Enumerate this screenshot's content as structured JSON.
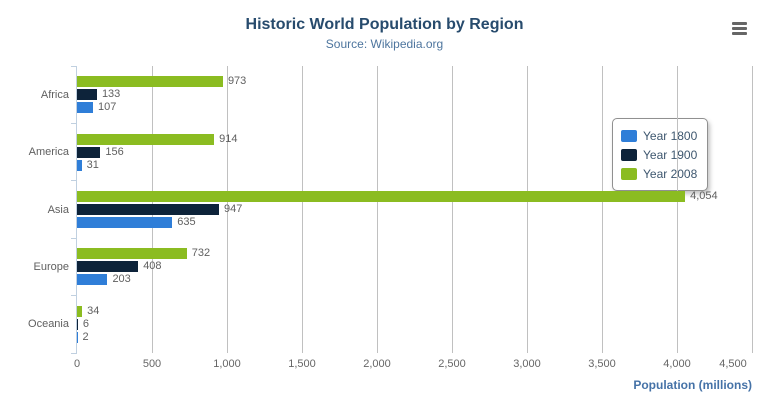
{
  "header": {
    "export_menu_icon": "hamburger-icon"
  },
  "chart_data": {
    "type": "bar",
    "orientation": "horizontal",
    "title": "Historic World Population by Region",
    "subtitle": "Source: Wikipedia.org",
    "categories": [
      "Africa",
      "America",
      "Asia",
      "Europe",
      "Oceania"
    ],
    "series": [
      {
        "name": "Year 1800",
        "color": "#2f7ed8",
        "values": [
          107,
          31,
          635,
          203,
          2
        ]
      },
      {
        "name": "Year 1900",
        "color": "#0d233a",
        "values": [
          133,
          156,
          947,
          408,
          6
        ]
      },
      {
        "name": "Year 2008",
        "color": "#8bbc21",
        "values": [
          973,
          914,
          4054,
          732,
          34
        ]
      }
    ],
    "bar_order_top_to_bottom": [
      "Year 2008",
      "Year 1900",
      "Year 1800"
    ],
    "data_labels": true,
    "xlabel": "Population (millions)",
    "xlim": [
      0,
      4500
    ],
    "tick_interval": 500,
    "tick_labels": [
      "0",
      "500",
      "1,000",
      "1,500",
      "2,000",
      "2,500",
      "3,000",
      "3,500",
      "4,000",
      "4,500"
    ],
    "grid": true,
    "legend_position": "right-middle",
    "style": {
      "title_color": "#274b6d",
      "subtitle_color": "#4d759e",
      "axis_label_color": "#666666",
      "category_label_color": "#606060",
      "data_label_color": "#606060",
      "axis_title_color": "#4572a7",
      "grid_color": "#c0c0c0",
      "category_axis_line_color": "#c0d0e0",
      "legend_text_color": "#3e576f",
      "legend_border_color": "#909090"
    }
  }
}
